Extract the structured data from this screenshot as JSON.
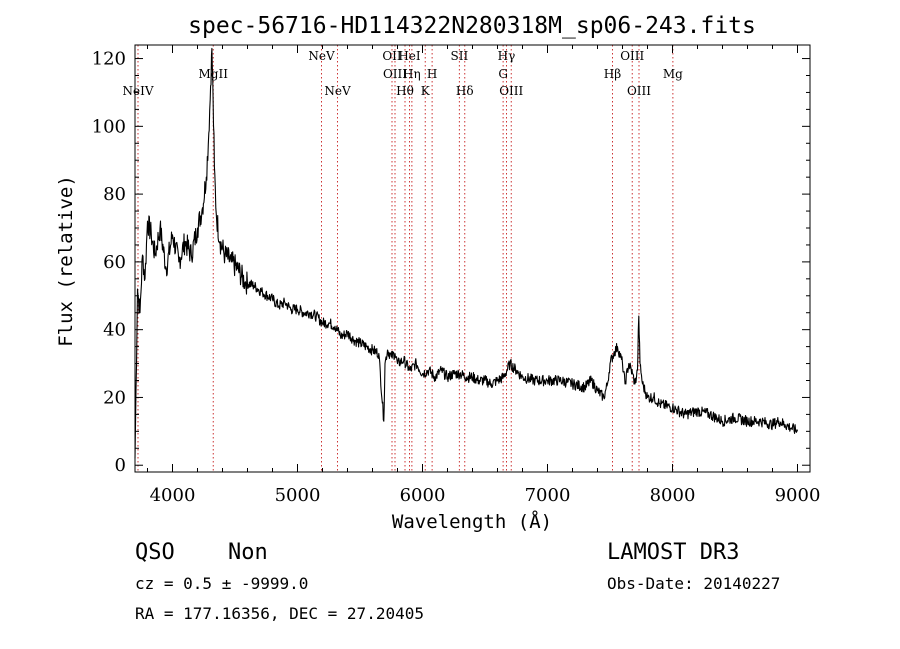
{
  "chart_data": {
    "type": "line",
    "title": "spec-56716-HD114322N280318M_sp06-243.fits",
    "xlabel": "Wavelength (Å)",
    "ylabel": "Flux (relative)",
    "xlim": [
      3700,
      9100
    ],
    "ylim": [
      -2,
      124
    ],
    "xticks": [
      4000,
      5000,
      6000,
      7000,
      8000,
      9000
    ],
    "yticks": [
      0,
      20,
      40,
      60,
      80,
      100,
      120
    ],
    "grid": false,
    "series": [
      {
        "x": [
          3700,
          3720,
          3740,
          3760,
          3780,
          3800,
          3830,
          3860,
          3900,
          3950,
          4000,
          4050,
          4100,
          4150,
          4200,
          4240,
          4270,
          4290,
          4305,
          4315,
          4325,
          4335,
          4350,
          4380,
          4420,
          4470,
          4520,
          4580,
          4650,
          4720,
          4800,
          4850,
          4900,
          4950,
          5000,
          5050,
          5100,
          5150,
          5200,
          5250,
          5300,
          5350,
          5400,
          5450,
          5500,
          5550,
          5600,
          5650,
          5690,
          5700,
          5720,
          5750,
          5780,
          5800,
          5850,
          5900,
          5950,
          6000,
          6050,
          6100,
          6150,
          6200,
          6250,
          6300,
          6350,
          6400,
          6450,
          6500,
          6550,
          6600,
          6650,
          6700,
          6750,
          6800,
          6900,
          7000,
          7100,
          7200,
          7300,
          7350,
          7400,
          7450,
          7480,
          7500,
          7530,
          7560,
          7600,
          7620,
          7650,
          7680,
          7700,
          7720,
          7730,
          7740,
          7760,
          7800,
          7850,
          7900,
          8000,
          8100,
          8200,
          8300,
          8400,
          8500,
          8600,
          8700,
          8800,
          8850,
          8900,
          8950,
          9000
        ],
        "values": [
          2,
          52,
          45,
          62,
          55,
          72,
          68,
          62,
          70,
          58,
          68,
          60,
          66,
          62,
          70,
          76,
          85,
          98,
          112,
          123,
          108,
          88,
          74,
          66,
          62,
          60,
          58,
          54,
          53,
          51,
          49,
          47,
          48,
          46,
          46,
          45,
          45,
          44,
          42,
          42,
          41,
          38,
          39,
          37,
          36,
          35,
          34,
          33,
          13,
          30,
          34,
          32,
          33,
          30,
          31,
          28,
          30,
          27,
          28,
          26,
          28,
          26,
          27,
          27,
          26,
          26,
          25,
          25,
          24,
          25,
          26,
          30,
          28,
          26,
          25,
          25,
          25,
          24,
          23,
          25,
          22,
          20,
          24,
          30,
          33,
          35,
          30,
          24,
          30,
          27,
          24,
          28,
          44,
          30,
          24,
          20,
          20,
          18,
          17,
          15,
          16,
          15,
          13,
          14,
          13,
          13,
          12,
          13,
          12,
          11,
          10
        ]
      }
    ],
    "lines": [
      {
        "name": "NeIV",
        "x": 3724,
        "row": 2
      },
      {
        "name": "MgII",
        "x": 4326,
        "row": 1
      },
      {
        "name": "NeV",
        "x": 5192,
        "row": 0
      },
      {
        "name": "NeV",
        "x": 5320,
        "row": 2
      },
      {
        "name": "OII",
        "x": 5756,
        "row": 0
      },
      {
        "name": "OIII",
        "x": 5780,
        "row": 1
      },
      {
        "name": "Hθ",
        "x": 5860,
        "row": 2
      },
      {
        "name": "HeI",
        "x": 5896,
        "row": 0
      },
      {
        "name": "Hη",
        "x": 5915,
        "row": 1
      },
      {
        "name": "K",
        "x": 6022,
        "row": 2
      },
      {
        "name": "H",
        "x": 6077,
        "row": 1
      },
      {
        "name": "SII",
        "x": 6295,
        "row": 0
      },
      {
        "name": "Hδ",
        "x": 6338,
        "row": 2
      },
      {
        "name": "Hγ",
        "x": 6672,
        "row": 0
      },
      {
        "name": "G",
        "x": 6645,
        "row": 1
      },
      {
        "name": "OIII",
        "x": 6710,
        "row": 2
      },
      {
        "name": "Hβ",
        "x": 7520,
        "row": 1
      },
      {
        "name": "OIII",
        "x": 7678,
        "row": 0
      },
      {
        "name": "OIII",
        "x": 7732,
        "row": 2
      },
      {
        "name": "Mg",
        "x": 8003,
        "row": 1
      }
    ]
  },
  "footer": {
    "class": "QSO",
    "subclass": "Non",
    "survey": "LAMOST DR3",
    "cz": "cz = 0.5 ± -9999.0",
    "obs_date": "Obs-Date: 20140227",
    "radec": "RA = 177.16356, DEC =  27.20405"
  },
  "colors": {
    "spectrum": "#000000",
    "line_markers": "#cc3333",
    "axes": "#000000"
  }
}
